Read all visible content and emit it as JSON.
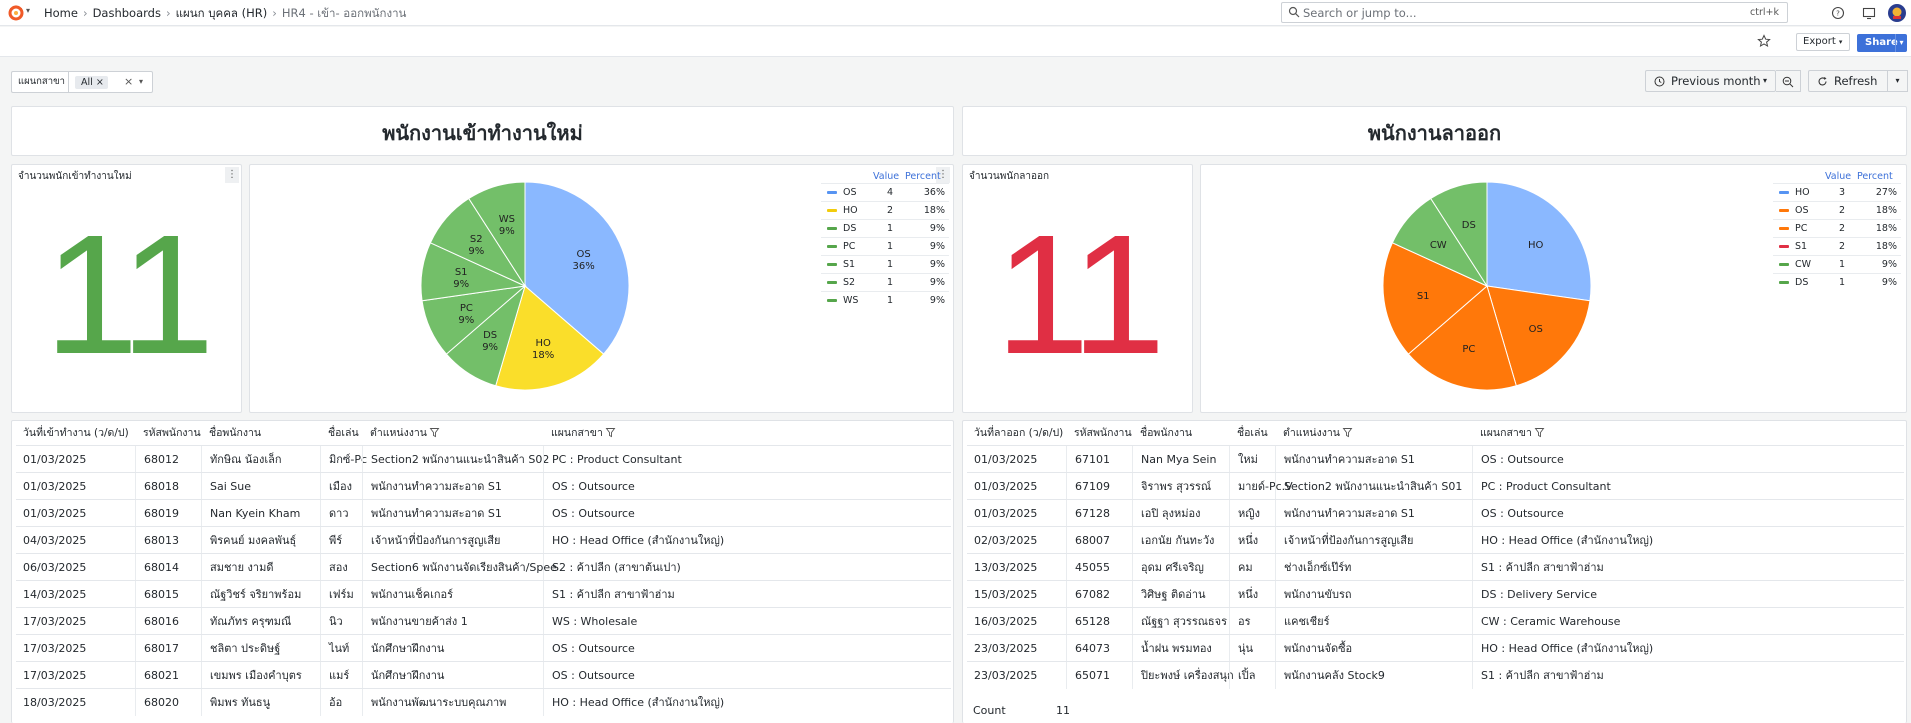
{
  "topbar": {
    "breadcrumbs": [
      "Home",
      "Dashboards",
      "แผนก บุคคล (HR)",
      "HR4 - เข้า- ออกพนักงาน"
    ],
    "search_placeholder": "Search or jump to...",
    "search_shortcut": "ctrl+k"
  },
  "toolbar": {
    "export_label": "Export",
    "share_label": "Share"
  },
  "variables": {
    "label": "แผนกสาขา",
    "value": "All"
  },
  "time": {
    "range_label": "Previous month",
    "refresh_label": "Refresh"
  },
  "new_hires": {
    "section_title": "พนักงานเข้าทำงานใหม่",
    "stat_title": "จำนวนพนักเข้าทำงานใหม่",
    "stat_value": "11",
    "stat_color": "#56a64b",
    "legend_headers": {
      "value": "Value",
      "percent": "Percent"
    },
    "chart_data": {
      "type": "pie",
      "title": "",
      "slices": [
        {
          "name": "OS",
          "value": 4,
          "percent": "36%",
          "color": "#8ab8ff"
        },
        {
          "name": "HO",
          "value": 2,
          "percent": "18%",
          "color": "#fade2a"
        },
        {
          "name": "DS",
          "value": 1,
          "percent": "9%",
          "color": "#73bf69"
        },
        {
          "name": "PC",
          "value": 1,
          "percent": "9%",
          "color": "#73bf69"
        },
        {
          "name": "S1",
          "value": 1,
          "percent": "9%",
          "color": "#73bf69"
        },
        {
          "name": "S2",
          "value": 1,
          "percent": "9%",
          "color": "#73bf69"
        },
        {
          "name": "WS",
          "value": 1,
          "percent": "9%",
          "color": "#73bf69"
        }
      ]
    },
    "legend_colors": [
      "#5794f2",
      "#f2cc0c",
      "#56a64b",
      "#56a64b",
      "#56a64b",
      "#56a64b",
      "#56a64b"
    ],
    "table": {
      "headers": [
        "วันที่เข้าทำงาน (ว/ด/ป)",
        "รหัสพนักงาน",
        "ชื่อพนักงาน",
        "ชื่อเล่น",
        "ตำแหน่งงาน",
        "แผนกสาขา"
      ],
      "rows": [
        [
          "01/03/2025",
          "68012",
          "ทักษิณ น้องเล็ก",
          "มิกซ์-Pc",
          "Section2 พนักงานแนะนำสินค้า S02",
          "PC : Product Consultant"
        ],
        [
          "01/03/2025",
          "68018",
          "Sai Sue",
          "เมือง",
          "พนักงานทำความสะอาด S1",
          "OS : Outsource"
        ],
        [
          "01/03/2025",
          "68019",
          "Nan Kyein Kham",
          "ดาว",
          "พนักงานทำความสะอาด S1",
          "OS : Outsource"
        ],
        [
          "04/03/2025",
          "68013",
          "พิรคนย์ มงคลพันธุ์",
          "พีร์",
          "เจ้าหน้าที่ป้องกันการสูญเสีย",
          "HO : Head Office (สำนักงานใหญ่)"
        ],
        [
          "06/03/2025",
          "68014",
          "สมชาย งามดี",
          "สอง",
          "Section6 พนักงานจัดเรียงสินค้า/Spee",
          "S2 : ค้าปลีก (สาขาต้นเปา)"
        ],
        [
          "14/03/2025",
          "68015",
          "ณัฐวิชร์ จริยาพร้อม",
          "เฟร์ม",
          "พนักงานเช็คเกอร์",
          "S1 : ค้าปลีก สาขาฟ้าฮ่าม"
        ],
        [
          "17/03/2025",
          "68016",
          "ทัณภัทร ครุฑมณี",
          "นิว",
          "พนักงานขายค้าส่ง 1",
          "WS : Wholesale"
        ],
        [
          "17/03/2025",
          "68017",
          "ชลิตา ประดิษฐ์",
          "ไนท์",
          "นักศึกษาฝึกงาน",
          "OS : Outsource"
        ],
        [
          "17/03/2025",
          "68021",
          "เขมพร เมืองคำบุตร",
          "แมร์",
          "นักศึกษาฝึกงาน",
          "OS : Outsource"
        ],
        [
          "18/03/2025",
          "68020",
          "พิมพร ทันธนู",
          "อ้อ",
          "พนักงานพัฒนาระบบคุณภาพ",
          "HO : Head Office (สำนักงานใหญ่)"
        ]
      ]
    }
  },
  "resignations": {
    "section_title": "พนักงานลาออก",
    "stat_title": "จำนวนพนักลาออก",
    "stat_value": "11",
    "stat_color": "#e02f44",
    "legend_headers": {
      "value": "Value",
      "percent": "Percent"
    },
    "chart_data": {
      "type": "pie",
      "title": "",
      "slices": [
        {
          "name": "HO",
          "value": 3,
          "percent": "27%",
          "color": "#8ab8ff"
        },
        {
          "name": "OS",
          "value": 2,
          "percent": "18%",
          "color": "#ff780a"
        },
        {
          "name": "PC",
          "value": 2,
          "percent": "18%",
          "color": "#ff780a"
        },
        {
          "name": "S1",
          "value": 2,
          "percent": "18%",
          "color": "#ff780a"
        },
        {
          "name": "CW",
          "value": 1,
          "percent": "9%",
          "color": "#73bf69"
        },
        {
          "name": "DS",
          "value": 1,
          "percent": "9%",
          "color": "#73bf69"
        }
      ]
    },
    "legend_colors": [
      "#5794f2",
      "#ff780a",
      "#ff780a",
      "#e02f44",
      "#56a64b",
      "#56a64b"
    ],
    "table": {
      "headers": [
        "วันที่ลาออก (ว/ด/ป)",
        "รหัสพนักงาน",
        "ชื่อพนักงาน",
        "ชื่อเล่น",
        "ตำแหน่งงาน",
        "แผนกสาขา"
      ],
      "rows": [
        [
          "01/03/2025",
          "67101",
          "Nan Mya Sein",
          "ใหม่",
          "พนักงานทำความสะอาด S1",
          "OS : Outsource"
        ],
        [
          "01/03/2025",
          "67109",
          "จิราพร สุวรรณ์",
          "มายด์-Pc.V",
          "Section2 พนักงานแนะนำสินค้า S01",
          "PC : Product Consultant"
        ],
        [
          "01/03/2025",
          "67128",
          "เอปิ ลุงหม่อง",
          "หญิง",
          "พนักงานทำความสะอาด S1",
          "OS : Outsource"
        ],
        [
          "02/03/2025",
          "68007",
          "เอกนัย กันทะวัง",
          "หนึ่ง",
          "เจ้าหน้าที่ป้องกันการสูญเสีย",
          "HO : Head Office (สำนักงานใหญ่)"
        ],
        [
          "13/03/2025",
          "45055",
          "อุดม ศรีเจริญ",
          "คม",
          "ช่างเอ็กซ์เป๊ร์ท",
          "S1 : ค้าปลีก สาขาฟ้าฮ่าม"
        ],
        [
          "15/03/2025",
          "67082",
          "วิศิษฐ ติดอ่าน",
          "หนึ่ง",
          "พนักงานขับรถ",
          "DS : Delivery Service"
        ],
        [
          "16/03/2025",
          "65128",
          "ณัฐฐา สุวรรณธจร",
          "อร",
          "แคชเชียร์",
          "CW : Ceramic Warehouse"
        ],
        [
          "23/03/2025",
          "64073",
          "น้ำฝน พรมทอง",
          "นุ่น",
          "พนักงานจัดซื้อ",
          "HO : Head Office (สำนักงานใหญ่)"
        ],
        [
          "23/03/2025",
          "65071",
          "ปิยะพงษ์ เครื่องสนุก",
          "เปิ้ล",
          "พนักงานคลัง Stock9",
          "S1 : ค้าปลีก สาขาฟ้าฮ่าม"
        ]
      ],
      "count_label": "Count",
      "count_value": "11"
    }
  }
}
